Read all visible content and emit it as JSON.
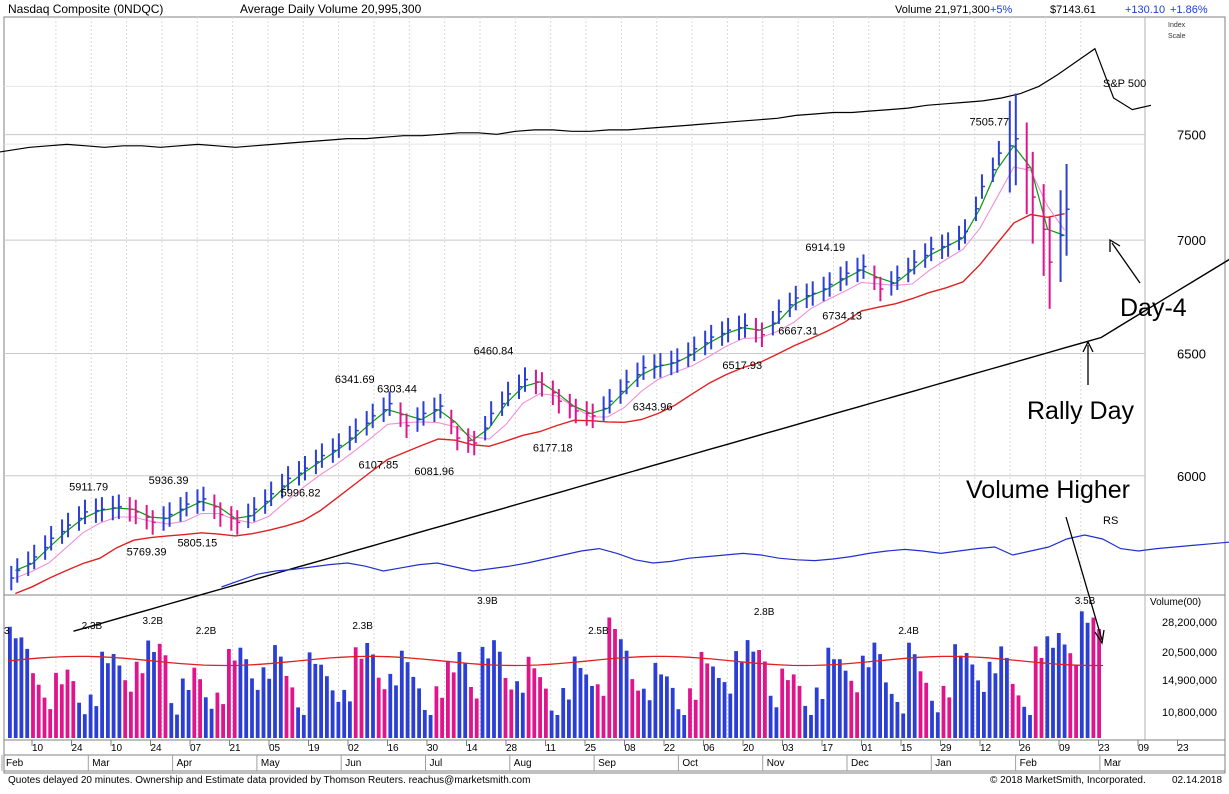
{
  "header": {
    "symbol": "Nasdaq Composite   (0NDQC)",
    "avg_volume": "Average Daily Volume 20,995,300",
    "volume": "Volume 21,971,300",
    "volume_change": "+5%",
    "price": "$7143.61",
    "change": "+130.10",
    "change_pct": "+1.86%",
    "index_scale_1": "Index",
    "index_scale_2": "Scale"
  },
  "footer": {
    "left": "Quotes delayed 20 minutes. Ownership and Estimate data provided by Thomson Reuters. reachus@marketsmith.com",
    "copyright": "© 2018 MarketSmith, Incorporated.",
    "date": "02.14.2018"
  },
  "annotations": {
    "day4": "Day-4",
    "rally_day": "Rally Day",
    "volume_higher": "Volume Higher",
    "sp500": "S&P 500",
    "rs": "RS"
  },
  "colors": {
    "up_bar": "#2b3fd6",
    "down_bar": "#e0148c",
    "ma_short": "#0a9a0a",
    "ma_mid": "#f090d8",
    "ma_50": "#e02020",
    "ma_200": "#000000",
    "rs_line": "#2030d0",
    "annotation": "#000000"
  },
  "chart_data": [
    {
      "type": "line",
      "name": "price",
      "scale": "log",
      "ylim": [
        5550,
        8100
      ],
      "y_ticks": [
        6000,
        6500,
        7000,
        7500
      ],
      "x_months": [
        "Feb",
        "Mar",
        "Apr",
        "May",
        "Jun",
        "Jul",
        "Aug",
        "Sep",
        "Oct",
        "Nov",
        "Dec",
        "Jan",
        "Feb",
        "Mar"
      ],
      "x_day_ticks": [
        "10",
        "24",
        "10",
        "24",
        "07",
        "21",
        "05",
        "19",
        "02",
        "16",
        "30",
        "14",
        "28",
        "11",
        "25",
        "08",
        "22",
        "06",
        "20",
        "03",
        "17",
        "01",
        "15",
        "29",
        "12",
        "26",
        "09",
        "23",
        "09",
        "23"
      ],
      "x_weeks": [
        2,
        4,
        6,
        8,
        10,
        12,
        14,
        16,
        18,
        20,
        22,
        24,
        26,
        28,
        30,
        32,
        34,
        36,
        38,
        40,
        42,
        44,
        46,
        48,
        50,
        52,
        54,
        56,
        58,
        60
      ],
      "price_labels": [
        {
          "label": "5911.79",
          "week": 4.6,
          "value": 5911.79
        },
        {
          "label": "5769.39",
          "week": 8.0,
          "value": 5769.39
        },
        {
          "label": "5936.39",
          "week": 9.3,
          "value": 5936.39
        },
        {
          "label": "5805.15",
          "week": 11.0,
          "value": 5805.15
        },
        {
          "label": "5996.82",
          "week": 17.1,
          "value": 5996.82
        },
        {
          "label": "6341.69",
          "week": 20.3,
          "value": 6341.69
        },
        {
          "label": "6107.85",
          "week": 21.7,
          "value": 6107.85
        },
        {
          "label": "6303.44",
          "week": 22.8,
          "value": 6303.44
        },
        {
          "label": "6081.96",
          "week": 25.0,
          "value": 6081.96
        },
        {
          "label": "6460.84",
          "week": 28.5,
          "value": 6460.84
        },
        {
          "label": "6177.18",
          "week": 32.0,
          "value": 6177.18
        },
        {
          "label": "6343.96",
          "week": 37.9,
          "value": 6343.96
        },
        {
          "label": "6517.93",
          "week": 43.2,
          "value": 6517.93
        },
        {
          "label": "6667.31",
          "week": 46.5,
          "value": 6667.31
        },
        {
          "label": "6914.19",
          "week": 48.1,
          "value": 6914.19
        },
        {
          "label": "6734.13",
          "week": 49.1,
          "value": 6734.13
        },
        {
          "label": "7505.77",
          "week": 57.8,
          "value": 7505.77
        }
      ],
      "weekly_close": [
        5640,
        5690,
        5760,
        5810,
        5860,
        5870,
        5880,
        5860,
        5820,
        5850,
        5890,
        5910,
        5850,
        5820,
        5870,
        5930,
        5990,
        6030,
        6080,
        6120,
        6180,
        6240,
        6290,
        6200,
        6250,
        6280,
        6150,
        6130,
        6250,
        6330,
        6390,
        6370,
        6300,
        6260,
        6240,
        6300,
        6380,
        6440,
        6450,
        6470,
        6520,
        6570,
        6600,
        6620,
        6580,
        6680,
        6740,
        6760,
        6800,
        6850,
        6880,
        6780,
        6830,
        6900,
        6960,
        6980,
        7040,
        7250,
        7410,
        7480,
        7200,
        6900,
        7143
      ],
      "weekly_up": [
        1,
        1,
        1,
        1,
        1,
        1,
        1,
        0,
        0,
        1,
        1,
        1,
        0,
        0,
        1,
        1,
        1,
        1,
        1,
        1,
        1,
        1,
        1,
        0,
        1,
        1,
        0,
        0,
        1,
        1,
        1,
        0,
        0,
        0,
        0,
        1,
        1,
        1,
        1,
        1,
        1,
        1,
        1,
        1,
        0,
        1,
        1,
        1,
        1,
        1,
        1,
        0,
        1,
        1,
        1,
        1,
        1,
        1,
        1,
        1,
        0,
        0,
        1
      ]
    },
    {
      "type": "line",
      "name": "S&P 500",
      "weekly_values": [
        0.22,
        0.24,
        0.26,
        0.27,
        0.28,
        0.27,
        0.26,
        0.27,
        0.27,
        0.26,
        0.27,
        0.28,
        0.27,
        0.26,
        0.27,
        0.28,
        0.29,
        0.3,
        0.31,
        0.32,
        0.32,
        0.33,
        0.34,
        0.34,
        0.35,
        0.36,
        0.36,
        0.35,
        0.37,
        0.38,
        0.38,
        0.37,
        0.37,
        0.38,
        0.38,
        0.39,
        0.4,
        0.41,
        0.42,
        0.43,
        0.44,
        0.45,
        0.46,
        0.48,
        0.49,
        0.5,
        0.5,
        0.51,
        0.52,
        0.53,
        0.55,
        0.56,
        0.57,
        0.58,
        0.6,
        0.63,
        0.68,
        0.76,
        0.85,
        0.94,
        0.6,
        0.52,
        0.55
      ]
    },
    {
      "type": "line",
      "name": "RS",
      "weekly_values": [
        0.1,
        0.18,
        0.26,
        0.3,
        0.32,
        0.35,
        0.38,
        0.4,
        0.36,
        0.3,
        0.34,
        0.38,
        0.4,
        0.35,
        0.3,
        0.33,
        0.36,
        0.4,
        0.45,
        0.5,
        0.55,
        0.58,
        0.52,
        0.44,
        0.4,
        0.42,
        0.46,
        0.48,
        0.5,
        0.52,
        0.5,
        0.46,
        0.44,
        0.43,
        0.45,
        0.48,
        0.52,
        0.55,
        0.57,
        0.55,
        0.52,
        0.55,
        0.58,
        0.6,
        0.5,
        0.55,
        0.6,
        0.7,
        0.75,
        0.7,
        0.58,
        0.55,
        0.58,
        0.6,
        0.62,
        0.64,
        0.66,
        0.68,
        0.72,
        0.75,
        0.78,
        0.74,
        0.8
      ]
    },
    {
      "type": "bar",
      "name": "volume",
      "y_ticks": [
        "10,800,000",
        "14,900,000",
        "20,500,000",
        "28,200,000"
      ],
      "axis_title": "Volume(00)",
      "peak_labels": [
        {
          "label": "3",
          "week": 0.0
        },
        {
          "label": "2.3B",
          "week": 5.5
        },
        {
          "label": "3.2B",
          "week": 9.5
        },
        {
          "label": "2.2B",
          "week": 13.0
        },
        {
          "label": "2.3B",
          "week": 23.3
        },
        {
          "label": "3.9B",
          "week": 31.5
        },
        {
          "label": "2.5B",
          "week": 38.8
        },
        {
          "label": "2.8B",
          "week": 49.7
        },
        {
          "label": "2.4B",
          "week": 59.2
        },
        {
          "label": "3.5B",
          "week": 70.8
        }
      ],
      "bar_count": 95,
      "avg_volume_level": 20.9
    }
  ]
}
